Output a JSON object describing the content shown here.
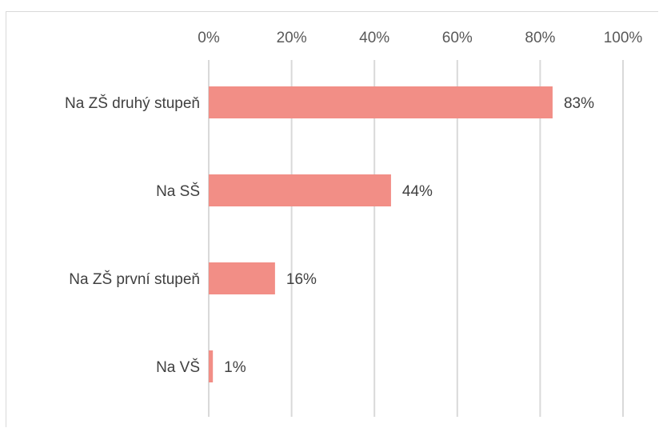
{
  "chart_data": {
    "type": "bar",
    "orientation": "horizontal",
    "title": "",
    "xlabel": "",
    "ylabel": "",
    "categories": [
      "Na ZŠ druhý stupeň",
      "Na SŠ",
      "Na ZŠ první stupeň",
      "Na VŠ"
    ],
    "values": [
      83,
      44,
      16,
      1
    ],
    "value_labels": [
      "83%",
      "44%",
      "16%",
      "1%"
    ],
    "xlim": [
      0,
      100
    ],
    "x_ticks": [
      0,
      20,
      40,
      60,
      80,
      100
    ],
    "x_tick_labels": [
      "0%",
      "20%",
      "40%",
      "60%",
      "80%",
      "100%"
    ],
    "x_axis_position": "top",
    "grid": true,
    "legend": "none",
    "colors": {
      "bar": "#f28e86",
      "grid": "#d9d9d9",
      "text": "#404040",
      "tick_text": "#595959"
    }
  }
}
